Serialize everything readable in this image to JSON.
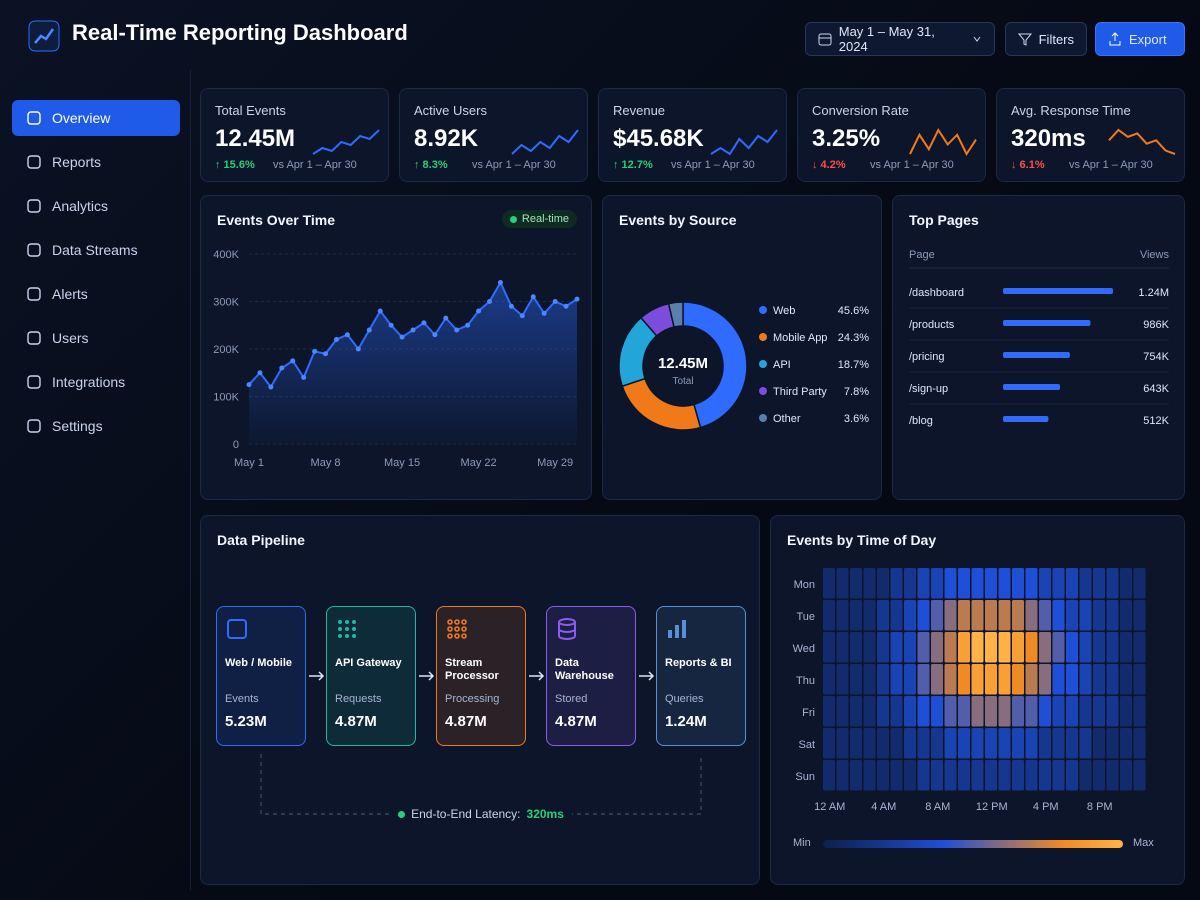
{
  "header": {
    "title": "Real-Time Reporting Dashboard",
    "date_range": "May 1 – May 31, 2024",
    "filters": "Filters",
    "export": "Export"
  },
  "sidebar": {
    "items": [
      "Overview",
      "Reports",
      "Analytics",
      "Data Streams",
      "Alerts",
      "Users",
      "Integrations",
      "Settings"
    ],
    "active": 0
  },
  "kpis": [
    {
      "label": "Total Events",
      "value": "12.45M",
      "change": "↑ 15.6%",
      "direction": "up",
      "comparison": "vs Apr 1 – Apr 30",
      "color": "#2f6bff",
      "trend": [
        3,
        4,
        3.5,
        5,
        4.5,
        6,
        5.5,
        7
      ]
    },
    {
      "label": "Active Users",
      "value": "8.92K",
      "change": "↑ 8.3%",
      "direction": "up",
      "comparison": "vs Apr 1 – Apr 30",
      "color": "#2f6bff",
      "trend": [
        3,
        4.5,
        3.5,
        5,
        4,
        6,
        5,
        7
      ]
    },
    {
      "label": "Revenue",
      "value": "$45.68K",
      "change": "↑ 12.7%",
      "direction": "up",
      "comparison": "vs Apr 1 – Apr 30",
      "color": "#2f6bff",
      "trend": [
        3,
        4,
        3,
        5.5,
        4,
        6,
        5,
        7
      ]
    },
    {
      "label": "Conversion Rate",
      "value": "3.25%",
      "change": "↓ 4.2%",
      "direction": "down",
      "comparison": "vs Apr 1 – Apr 30",
      "color": "#f07a1a",
      "trend": [
        4,
        6,
        4.5,
        6.5,
        5,
        6,
        4,
        5.5
      ]
    },
    {
      "label": "Avg. Response Time",
      "value": "320ms",
      "change": "↓ 6.1%",
      "direction": "down",
      "comparison": "vs Apr 1 – Apr 30",
      "color": "#f07a1a",
      "trend": [
        5,
        6.5,
        5.5,
        6,
        4.5,
        5,
        3.5,
        3
      ]
    }
  ],
  "events_over_time": {
    "type": "line",
    "title": "Events Over Time",
    "badge": "Real-time",
    "color": "#2f6bff",
    "categories": [
      "May 1",
      null,
      null,
      null,
      null,
      null,
      null,
      "May 8",
      null,
      null,
      null,
      null,
      null,
      null,
      "May 15",
      null,
      null,
      null,
      null,
      null,
      null,
      "May 22",
      null,
      null,
      null,
      null,
      null,
      null,
      "May 29",
      null,
      null
    ],
    "values": [
      125000,
      150000,
      120000,
      160000,
      175000,
      140000,
      195000,
      190000,
      220000,
      230000,
      200000,
      240000,
      280000,
      250000,
      225000,
      240000,
      255000,
      230000,
      265000,
      240000,
      250000,
      280000,
      300000,
      340000,
      290000,
      270000,
      310000,
      275000,
      300000,
      290000,
      305000
    ],
    "ylim": [
      0,
      400000
    ],
    "yticks": [
      0,
      {
        "value": 100000,
        "label": "100K"
      },
      {
        "value": 200000,
        "label": "200K"
      },
      {
        "value": 300000,
        "label": "300K"
      },
      {
        "value": 400000,
        "label": "400K"
      }
    ]
  },
  "events_by_source": {
    "type": "pie",
    "title": "Events by Source",
    "center_value": "12.45M",
    "center_label": "Total",
    "categories": [
      "Web",
      "Mobile App",
      "API",
      "Third Party",
      "Other"
    ],
    "values": [
      45.6,
      24.3,
      18.7,
      7.8,
      3.6
    ],
    "value_labels": [
      "45.6%",
      "24.3%",
      "18.7%",
      "7.8%",
      "3.6%"
    ],
    "colors": [
      "#2f6bff",
      "#f07a1a",
      "#22a5d8",
      "#7b4ddb",
      "#5a7fa8"
    ]
  },
  "top_pages": {
    "title": "Top Pages",
    "columns": [
      "Page",
      "Views"
    ],
    "color": "#2f6bff",
    "pages": [
      "/dashboard",
      "/products",
      "/pricing",
      "/sign-up",
      "/blog"
    ],
    "values": [
      1240000,
      986000,
      754000,
      643000,
      512000
    ],
    "value_labels": [
      "1.24M",
      "986K",
      "754K",
      "643K",
      "512K"
    ]
  },
  "pipeline": {
    "title": "Data Pipeline",
    "stages": [
      {
        "name": "Web / Mobile",
        "metric": "Events",
        "value": "5.23M",
        "color": "#2f6bff"
      },
      {
        "name": "API Gateway",
        "metric": "Requests",
        "value": "4.87M",
        "color": "#1fb8a6"
      },
      {
        "name": "Stream Processor",
        "metric": "Processing",
        "value": "4.87M",
        "color": "#f07a1a"
      },
      {
        "name": "Data Warehouse",
        "metric": "Stored",
        "value": "4.87M",
        "color": "#8a5cf0"
      },
      {
        "name": "Reports & BI",
        "metric": "Queries",
        "value": "1.24M",
        "color": "#5a8fd8"
      }
    ],
    "latency_label": "End-to-End Latency:",
    "latency_value": "320ms"
  },
  "heatmap": {
    "title": "Events by Time of Day",
    "rows": [
      "Mon",
      "Tue",
      "Wed",
      "Thu",
      "Fri",
      "Sat",
      "Sun"
    ],
    "columns": [
      "12 AM",
      null,
      null,
      null,
      "4 AM",
      null,
      null,
      null,
      "8 AM",
      null,
      null,
      null,
      "12 PM",
      null,
      null,
      null,
      "4 PM",
      null,
      null,
      null,
      "8 PM",
      null,
      null,
      null
    ],
    "clim": [
      0,
      10
    ],
    "values": [
      [
        1,
        1,
        1,
        1,
        1,
        2,
        2,
        3,
        3,
        4,
        4,
        4,
        4,
        4,
        4,
        4,
        3,
        3,
        3,
        2,
        2,
        2,
        1,
        1
      ],
      [
        1,
        1,
        1,
        1,
        2,
        2,
        3,
        4,
        5,
        6,
        7,
        7,
        7,
        7,
        7,
        6,
        5,
        4,
        3,
        3,
        2,
        2,
        1,
        1
      ],
      [
        1,
        1,
        1,
        1,
        2,
        3,
        3,
        5,
        6,
        7,
        9,
        10,
        10,
        10,
        9,
        8,
        6,
        5,
        4,
        3,
        2,
        2,
        1,
        1
      ],
      [
        1,
        1,
        1,
        1,
        2,
        3,
        3,
        5,
        6,
        7,
        8,
        9,
        9,
        9,
        8,
        7,
        6,
        4,
        4,
        3,
        2,
        2,
        1,
        1
      ],
      [
        1,
        1,
        1,
        1,
        2,
        2,
        3,
        4,
        4,
        5,
        5,
        6,
        6,
        6,
        5,
        5,
        4,
        3,
        3,
        2,
        2,
        2,
        1,
        1
      ],
      [
        1,
        1,
        1,
        1,
        1,
        1,
        2,
        2,
        2,
        3,
        3,
        3,
        3,
        3,
        3,
        3,
        2,
        2,
        2,
        2,
        1,
        1,
        1,
        1
      ],
      [
        1,
        1,
        1,
        1,
        1,
        1,
        1,
        2,
        2,
        2,
        2,
        2,
        2,
        2,
        2,
        2,
        2,
        2,
        2,
        1,
        1,
        1,
        1,
        1
      ]
    ],
    "legend_min": "Min",
    "legend_max": "Max"
  }
}
